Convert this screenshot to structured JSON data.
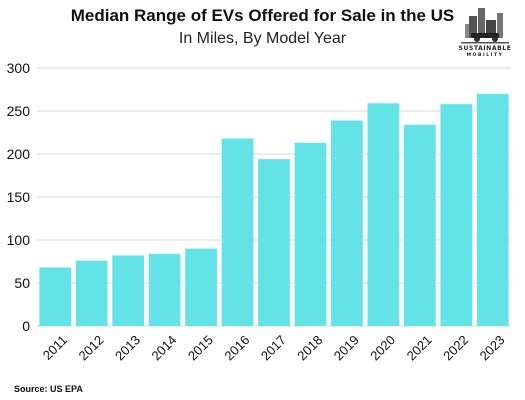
{
  "logo": {
    "line1": "SUSTAINABLE",
    "line2": "MOBILITY"
  },
  "source": "Source: US EPA",
  "colors": {
    "bar": "#63E3E6",
    "grid": "#d9d9d9",
    "text": "#111111"
  },
  "chart_data": {
    "type": "bar",
    "title": "Median Range of EVs Offered for Sale in the US",
    "subtitle": "In Miles, By Model Year",
    "xlabel": "",
    "ylabel": "",
    "categories": [
      "2011",
      "2012",
      "2013",
      "2014",
      "2015",
      "2016",
      "2017",
      "2018",
      "2019",
      "2020",
      "2021",
      "2022",
      "2023"
    ],
    "values": [
      68,
      76,
      82,
      84,
      90,
      218,
      194,
      213,
      239,
      259,
      234,
      258,
      270
    ],
    "ylim": [
      0,
      300
    ],
    "yticks": [
      0,
      50,
      100,
      150,
      200,
      250,
      300
    ],
    "grid": true,
    "legend": "none"
  }
}
